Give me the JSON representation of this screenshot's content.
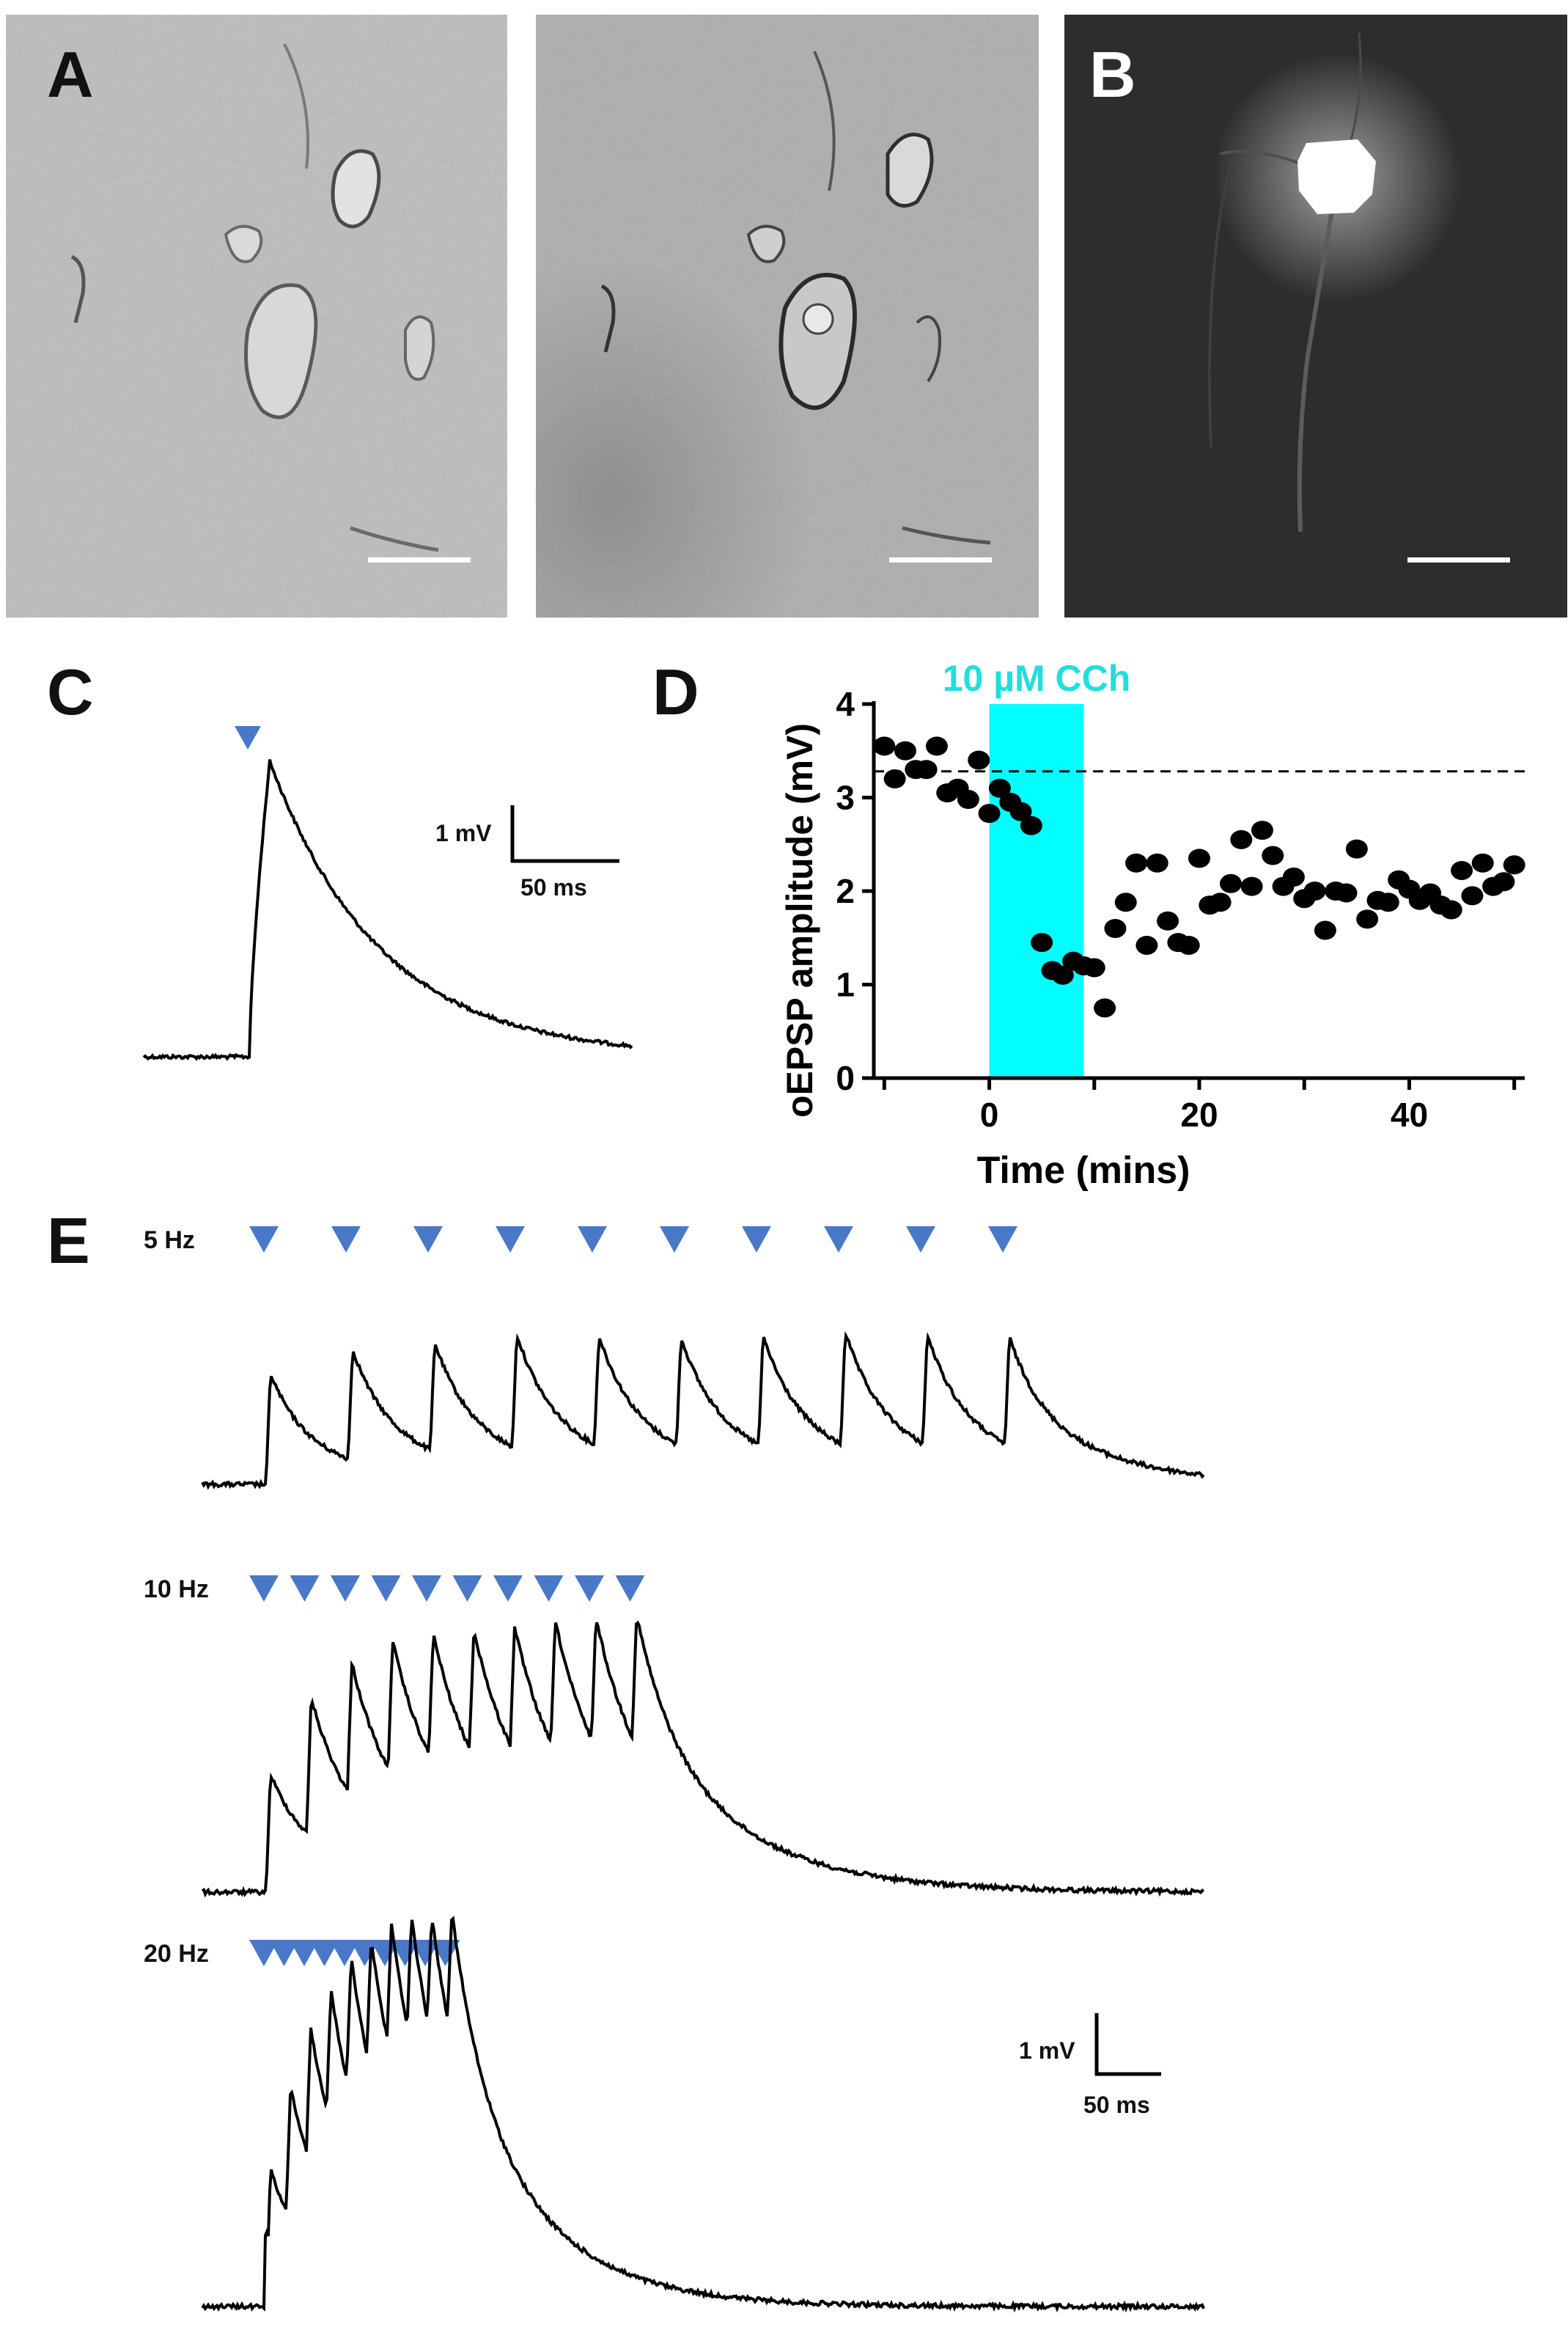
{
  "panels": {
    "A": {
      "letter": "A"
    },
    "B": {
      "letter": "B"
    },
    "C": {
      "letter": "C"
    },
    "D": {
      "letter": "D"
    },
    "E": {
      "letter": "E"
    }
  },
  "scalebars": {
    "C": {
      "voltage": "1 mV",
      "time": "50 ms"
    },
    "E": {
      "voltage": "1 mV",
      "time": "50 ms"
    }
  },
  "traces_E": [
    {
      "label": "5 Hz",
      "pulses": 10
    },
    {
      "label": "10 Hz",
      "pulses": 10
    },
    {
      "label": "20 Hz",
      "pulses": 10
    }
  ],
  "colors": {
    "stim_marker": "#4a78c8",
    "cch_bar": "#00ffff",
    "cch_text": "#22dede",
    "trace": "#000000"
  },
  "chart_data": {
    "type": "scatter",
    "cch_label": "10 µM CCh",
    "xlabel": "Time (mins)",
    "ylabel": "oEPSP amplitude (mV)",
    "xlim": [
      -11,
      51
    ],
    "ylim": [
      0,
      4
    ],
    "xticks": [
      "0",
      "20",
      "40"
    ],
    "yticks": [
      "0",
      "1",
      "2",
      "3",
      "4"
    ],
    "cch_interval": [
      0,
      9
    ],
    "baseline": 3.28,
    "x": [
      -10,
      -9,
      -8,
      -7,
      -6,
      -5,
      -4,
      -3,
      -2,
      -1,
      0,
      1,
      2,
      3,
      4,
      5,
      6,
      7,
      8,
      9,
      10,
      11,
      12,
      13,
      14,
      15,
      16,
      17,
      18,
      19,
      20,
      21,
      22,
      23,
      24,
      25,
      26,
      27,
      28,
      29,
      30,
      31,
      32,
      33,
      34,
      35,
      36,
      37,
      38,
      39,
      40,
      41,
      42,
      43,
      44,
      45,
      46,
      47,
      48,
      49,
      50
    ],
    "y": [
      3.55,
      3.2,
      3.5,
      3.3,
      3.3,
      3.55,
      3.05,
      3.1,
      2.98,
      3.4,
      2.83,
      3.1,
      2.95,
      2.85,
      2.7,
      1.45,
      1.15,
      1.1,
      1.25,
      1.2,
      1.18,
      0.75,
      1.6,
      1.88,
      2.3,
      1.42,
      2.3,
      1.68,
      1.45,
      1.42,
      2.35,
      1.85,
      1.88,
      2.08,
      2.55,
      2.05,
      2.65,
      2.38,
      2.05,
      2.15,
      1.92,
      2.0,
      1.58,
      2.0,
      1.98,
      2.45,
      1.7,
      1.9,
      1.88,
      2.12,
      2.02,
      1.9,
      1.98,
      1.85,
      1.8,
      2.22,
      1.95,
      2.3,
      2.05,
      2.1,
      2.28
    ]
  }
}
